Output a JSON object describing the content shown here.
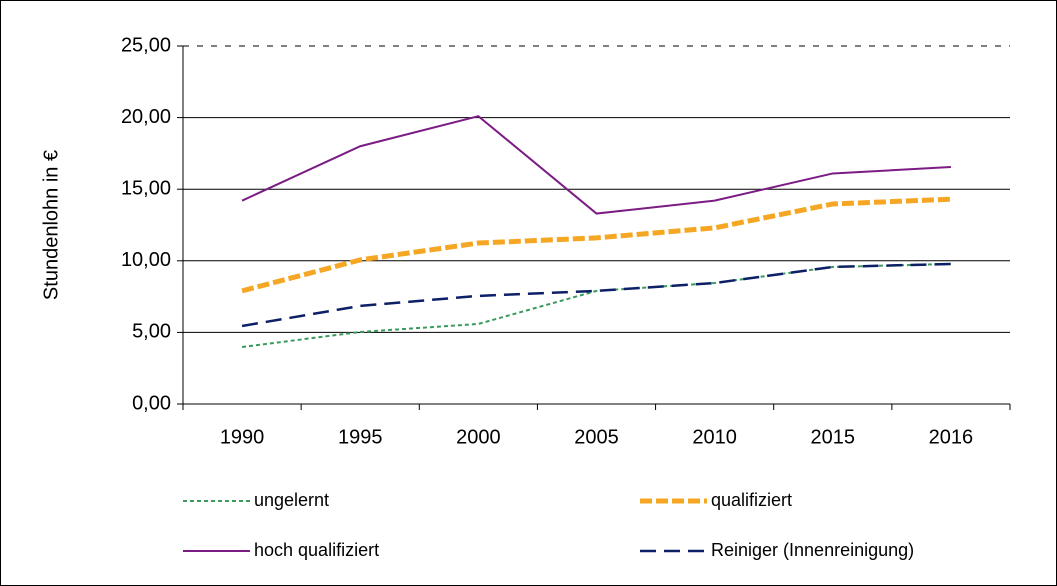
{
  "chart_data": {
    "type": "line",
    "y_label": "Stundenlohn in €",
    "categories": [
      "1990",
      "1995",
      "2000",
      "2005",
      "2010",
      "2015",
      "2016"
    ],
    "series": [
      {
        "name": "ungelernt",
        "color": "#3a9a5e",
        "values": [
          3.98,
          5.03,
          5.59,
          7.9,
          8.45,
          9.57,
          9.78
        ]
      },
      {
        "name": "qualifiziert",
        "color": "#f5a623",
        "values": [
          7.9,
          10.06,
          11.24,
          11.6,
          12.3,
          13.97,
          14.3
        ]
      },
      {
        "name": "hoch qualifiziert",
        "color": "#7b1c84",
        "values": [
          14.2,
          18.0,
          20.1,
          13.3,
          14.2,
          16.1,
          16.55
        ]
      },
      {
        "name": "Reiniger (Innenreinigung)",
        "color": "#0d1f66",
        "values": [
          5.45,
          6.85,
          7.55,
          7.9,
          8.45,
          9.57,
          9.78
        ]
      }
    ],
    "ylim": [
      0,
      25
    ],
    "yticks": [
      {
        "value": 0,
        "label": "0,00"
      },
      {
        "value": 5,
        "label": "5,00"
      },
      {
        "value": 10,
        "label": "10,00"
      },
      {
        "value": 15,
        "label": "15,00"
      },
      {
        "value": 20,
        "label": "20,00"
      },
      {
        "value": 25,
        "label": "25,00"
      }
    ],
    "grid": true
  }
}
